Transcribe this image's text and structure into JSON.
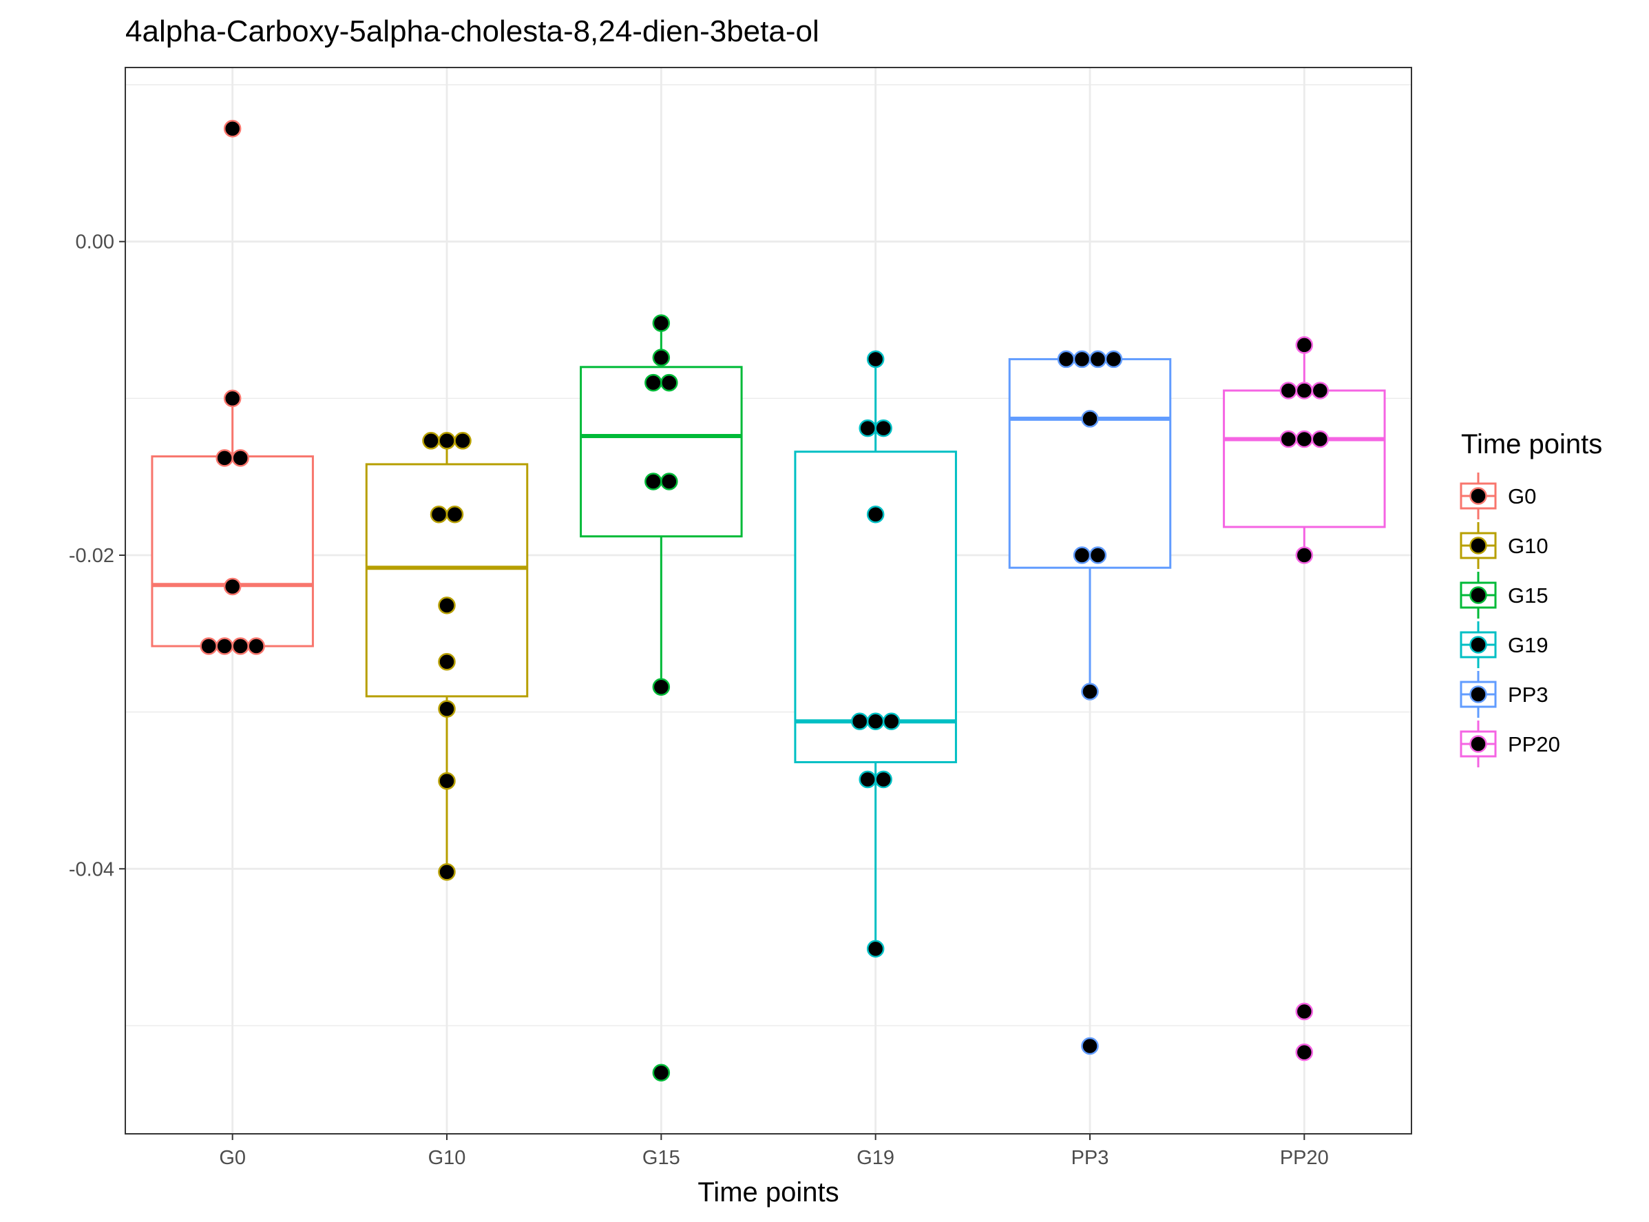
{
  "chart_data": {
    "type": "box",
    "title": "4alpha-Carboxy-5alpha-cholesta-8,24-dien-3beta-ol",
    "xlabel": "Time points",
    "ylabel": "",
    "ylim": [
      -0.0569,
      0.0111
    ],
    "yticks": [
      0.0,
      -0.02,
      -0.04
    ],
    "ytick_labels": [
      "0.00",
      "-0.02",
      "-0.04"
    ],
    "grid": true,
    "legend": {
      "title": "Time points",
      "placement": "right"
    },
    "categories": [
      "G0",
      "G10",
      "G15",
      "G19",
      "PP3",
      "PP20"
    ],
    "series": [
      {
        "name": "G0",
        "color": "#F8766D",
        "box": {
          "lower_whisker": -0.0258,
          "q1": -0.0258,
          "median": -0.0219,
          "q3": -0.0137,
          "upper_whisker": -0.01
        },
        "points": [
          0.0072,
          -0.01,
          -0.0138,
          -0.0138,
          -0.022,
          -0.0258,
          -0.0258,
          -0.0258,
          -0.0258
        ]
      },
      {
        "name": "G10",
        "color": "#B79F00",
        "box": {
          "lower_whisker": -0.0402,
          "q1": -0.029,
          "median": -0.0208,
          "q3": -0.0142,
          "upper_whisker": -0.0127
        },
        "points": [
          -0.0127,
          -0.0127,
          -0.0127,
          -0.0174,
          -0.0174,
          -0.0232,
          -0.0268,
          -0.0298,
          -0.0344,
          -0.0402
        ]
      },
      {
        "name": "G15",
        "color": "#00BA38",
        "box": {
          "lower_whisker": -0.0284,
          "q1": -0.0188,
          "median": -0.0124,
          "q3": -0.008,
          "upper_whisker": -0.0052
        },
        "points": [
          -0.0052,
          -0.0074,
          -0.009,
          -0.009,
          -0.0153,
          -0.0153,
          -0.0284,
          -0.053
        ]
      },
      {
        "name": "G19",
        "color": "#00BFC4",
        "box": {
          "lower_whisker": -0.0451,
          "q1": -0.0332,
          "median": -0.0306,
          "q3": -0.0134,
          "upper_whisker": -0.0075
        },
        "points": [
          -0.0075,
          -0.0119,
          -0.0119,
          -0.0174,
          -0.0306,
          -0.0306,
          -0.0306,
          -0.0343,
          -0.0343,
          -0.0451
        ]
      },
      {
        "name": "PP3",
        "color": "#619CFF",
        "box": {
          "lower_whisker": -0.0287,
          "q1": -0.0208,
          "median": -0.0113,
          "q3": -0.0075,
          "upper_whisker": -0.0075
        },
        "points": [
          -0.0075,
          -0.0075,
          -0.0075,
          -0.0075,
          -0.0113,
          -0.02,
          -0.02,
          -0.0287,
          -0.0513
        ]
      },
      {
        "name": "PP20",
        "color": "#F564E3",
        "box": {
          "lower_whisker": -0.02,
          "q1": -0.0182,
          "median": -0.0126,
          "q3": -0.0095,
          "upper_whisker": -0.0066
        },
        "points": [
          -0.0066,
          -0.0095,
          -0.0095,
          -0.0095,
          -0.0126,
          -0.0126,
          -0.0126,
          -0.02,
          -0.0491,
          -0.0517
        ]
      }
    ]
  }
}
